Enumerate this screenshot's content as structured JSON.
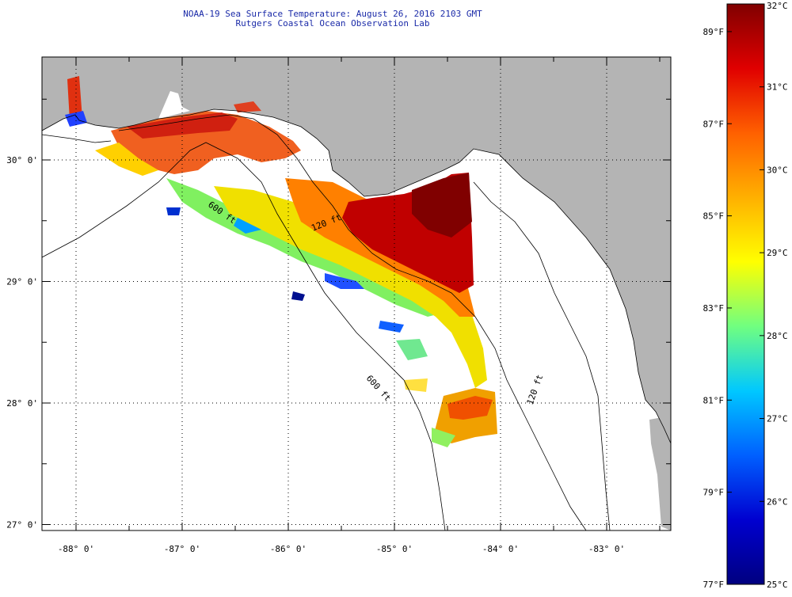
{
  "header": {
    "title": "NOAA-19 Sea Surface Temperature:  August 26, 2016 2103 GMT",
    "subtitle": "Rutgers Coastal Ocean Observation Lab"
  },
  "map": {
    "lon_labels": [
      {
        "value": -88,
        "label": "-88° 0'"
      },
      {
        "value": -87,
        "label": "-87° 0'"
      },
      {
        "value": -86,
        "label": "-86° 0'"
      },
      {
        "value": -85,
        "label": "-85° 0'"
      },
      {
        "value": -84,
        "label": "-84° 0'"
      },
      {
        "value": -83,
        "label": "-83° 0'"
      }
    ],
    "lat_labels": [
      {
        "value": 30,
        "label": "30° 0'"
      },
      {
        "value": 29,
        "label": "29° 0'"
      },
      {
        "value": 28,
        "label": "28° 0'"
      },
      {
        "value": 27,
        "label": "27° 0'"
      }
    ],
    "isobath_labels": [
      "120 ft",
      "600 ft",
      "600 ft",
      "120 ft"
    ],
    "colors": {
      "land": "#b4b4b4",
      "no_data": "#ffffff",
      "coast": "#000000"
    }
  },
  "colorbar": {
    "celsius": [
      {
        "value": 32,
        "label": "32°C"
      },
      {
        "value": 31,
        "label": "31°C"
      },
      {
        "value": 30,
        "label": "30°C"
      },
      {
        "value": 29,
        "label": "29°C"
      },
      {
        "value": 28,
        "label": "28°C"
      },
      {
        "value": 27,
        "label": "27°C"
      },
      {
        "value": 26,
        "label": "26°C"
      },
      {
        "value": 25,
        "label": "25°C"
      }
    ],
    "fahrenheit": [
      {
        "value": 89,
        "label": "89°F"
      },
      {
        "value": 87,
        "label": "87°F"
      },
      {
        "value": 85,
        "label": "85°F"
      },
      {
        "value": 83,
        "label": "83°F"
      },
      {
        "value": 81,
        "label": "81°F"
      },
      {
        "value": 79,
        "label": "79°F"
      },
      {
        "value": 77,
        "label": "77°F"
      }
    ],
    "min_c": 25,
    "max_c": 32,
    "gradient": [
      "#800000",
      "#e00000",
      "#ff6000",
      "#ffb000",
      "#ffff00",
      "#70ff80",
      "#00c8ff",
      "#0060ff",
      "#0000d0",
      "#000080"
    ]
  }
}
